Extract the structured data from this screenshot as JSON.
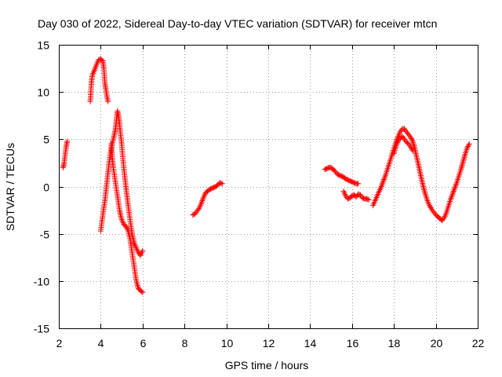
{
  "chart_data": {
    "type": "scatter",
    "title": "Day 030 of 2022, Sidereal Day-to-day VTEC variation (SDTVAR) for receiver mtcn",
    "xlabel": "GPS time / hours",
    "ylabel": "SDTVAR / TECUs",
    "xlim": [
      2,
      22
    ],
    "ylim": [
      -15,
      15
    ],
    "xticks": [
      2,
      4,
      6,
      8,
      10,
      12,
      14,
      16,
      18,
      20,
      22
    ],
    "yticks": [
      -15,
      -10,
      -5,
      0,
      5,
      10,
      15
    ],
    "grid": true,
    "marker": "+",
    "series": [
      {
        "name": "SDTVAR",
        "color": "#ff0000",
        "segments": [
          [
            [
              2.2,
              2.0
            ],
            [
              2.25,
              2.4
            ],
            [
              2.3,
              3.3
            ],
            [
              2.35,
              4.2
            ],
            [
              2.4,
              4.8
            ]
          ],
          [
            [
              3.5,
              9.0
            ],
            [
              3.55,
              10.8
            ],
            [
              3.6,
              11.8
            ],
            [
              3.7,
              12.3
            ],
            [
              3.8,
              12.9
            ],
            [
              3.9,
              13.4
            ],
            [
              4.0,
              13.5
            ],
            [
              4.1,
              13.3
            ],
            [
              4.15,
              12.5
            ],
            [
              4.2,
              11.0
            ],
            [
              4.25,
              10.2
            ],
            [
              4.3,
              9.5
            ],
            [
              4.35,
              9.0
            ]
          ],
          [
            [
              4.0,
              -4.7
            ],
            [
              4.1,
              -3.0
            ],
            [
              4.2,
              -1.5
            ],
            [
              4.3,
              0.5
            ],
            [
              4.4,
              2.5
            ],
            [
              4.5,
              4.0
            ],
            [
              4.6,
              5.0
            ],
            [
              4.7,
              6.0
            ],
            [
              4.75,
              7.0
            ],
            [
              4.8,
              8.0
            ],
            [
              4.85,
              7.5
            ],
            [
              4.9,
              6.5
            ],
            [
              5.0,
              4.5
            ],
            [
              5.1,
              2.0
            ],
            [
              5.2,
              0.0
            ],
            [
              5.3,
              -1.8
            ],
            [
              5.4,
              -3.5
            ],
            [
              5.5,
              -5.0
            ],
            [
              5.6,
              -6.0
            ],
            [
              5.7,
              -6.5
            ],
            [
              5.8,
              -7.0
            ],
            [
              5.9,
              -7.3
            ],
            [
              6.0,
              -6.8
            ]
          ],
          [
            [
              4.5,
              4.5
            ],
            [
              4.55,
              3.0
            ],
            [
              4.6,
              2.0
            ],
            [
              4.7,
              0.5
            ],
            [
              4.8,
              -1.0
            ],
            [
              4.9,
              -2.5
            ],
            [
              5.0,
              -3.5
            ],
            [
              5.1,
              -4.0
            ],
            [
              5.2,
              -4.2
            ],
            [
              5.3,
              -4.6
            ],
            [
              5.4,
              -5.5
            ],
            [
              5.5,
              -7.0
            ],
            [
              5.6,
              -8.5
            ],
            [
              5.7,
              -10.0
            ],
            [
              5.8,
              -10.8
            ],
            [
              5.9,
              -11.0
            ],
            [
              6.0,
              -11.2
            ]
          ],
          [
            [
              8.4,
              -3.0
            ],
            [
              8.5,
              -2.9
            ],
            [
              8.6,
              -2.6
            ],
            [
              8.7,
              -2.3
            ],
            [
              8.8,
              -1.8
            ],
            [
              8.9,
              -1.2
            ],
            [
              9.0,
              -0.7
            ],
            [
              9.1,
              -0.5
            ],
            [
              9.2,
              -0.3
            ],
            [
              9.3,
              -0.2
            ],
            [
              9.4,
              -0.1
            ],
            [
              9.5,
              0.0
            ],
            [
              9.6,
              0.2
            ],
            [
              9.7,
              0.4
            ],
            [
              9.8,
              0.3
            ]
          ],
          [
            [
              14.7,
              1.8
            ],
            [
              14.8,
              1.9
            ],
            [
              14.9,
              2.0
            ],
            [
              15.0,
              2.0
            ],
            [
              15.1,
              1.8
            ],
            [
              15.2,
              1.6
            ],
            [
              15.3,
              1.3
            ],
            [
              15.4,
              1.2
            ],
            [
              15.5,
              1.1
            ],
            [
              15.6,
              1.0
            ],
            [
              15.7,
              0.8
            ],
            [
              15.8,
              0.7
            ],
            [
              15.9,
              0.6
            ],
            [
              16.0,
              0.5
            ],
            [
              16.1,
              0.4
            ],
            [
              16.2,
              0.3
            ],
            [
              16.3,
              0.3
            ]
          ],
          [
            [
              15.6,
              -0.5
            ],
            [
              15.7,
              -1.0
            ],
            [
              15.8,
              -1.3
            ],
            [
              15.9,
              -1.2
            ],
            [
              16.0,
              -1.0
            ],
            [
              16.1,
              -0.9
            ],
            [
              16.2,
              -1.1
            ],
            [
              16.3,
              -0.8
            ],
            [
              16.4,
              -0.9
            ],
            [
              16.5,
              -1.2
            ],
            [
              16.6,
              -1.3
            ],
            [
              16.7,
              -1.3
            ],
            [
              16.8,
              -1.4
            ]
          ],
          [
            [
              17.0,
              -2.0
            ],
            [
              17.1,
              -1.5
            ],
            [
              17.2,
              -1.0
            ],
            [
              17.3,
              -0.5
            ],
            [
              17.4,
              0.0
            ],
            [
              17.5,
              0.6
            ],
            [
              17.6,
              1.2
            ],
            [
              17.7,
              1.9
            ],
            [
              17.8,
              2.6
            ],
            [
              17.9,
              3.3
            ],
            [
              18.0,
              4.0
            ],
            [
              18.1,
              4.7
            ],
            [
              18.2,
              5.3
            ],
            [
              18.3,
              5.8
            ],
            [
              18.4,
              6.1
            ],
            [
              18.5,
              6.1
            ],
            [
              18.6,
              5.8
            ],
            [
              18.7,
              5.5
            ],
            [
              18.8,
              5.2
            ],
            [
              18.9,
              4.8
            ],
            [
              19.0,
              4.0
            ],
            [
              19.1,
              3.0
            ],
            [
              19.2,
              2.0
            ],
            [
              19.3,
              1.0
            ],
            [
              19.4,
              0.0
            ],
            [
              19.5,
              -0.8
            ],
            [
              19.6,
              -1.5
            ],
            [
              19.7,
              -2.0
            ],
            [
              19.8,
              -2.4
            ],
            [
              19.9,
              -2.7
            ],
            [
              20.0,
              -3.0
            ],
            [
              20.1,
              -3.2
            ],
            [
              20.2,
              -3.4
            ],
            [
              20.3,
              -3.6
            ],
            [
              20.4,
              -3.3
            ],
            [
              20.5,
              -2.8
            ],
            [
              20.6,
              -2.1
            ],
            [
              20.7,
              -1.4
            ],
            [
              20.8,
              -0.8
            ],
            [
              20.9,
              -0.2
            ],
            [
              21.0,
              0.4
            ],
            [
              21.1,
              1.1
            ],
            [
              21.2,
              1.8
            ],
            [
              21.3,
              2.6
            ],
            [
              21.4,
              3.4
            ],
            [
              21.5,
              4.1
            ],
            [
              21.6,
              4.5
            ]
          ],
          [
            [
              18.0,
              3.5
            ],
            [
              18.1,
              4.3
            ],
            [
              18.2,
              4.8
            ],
            [
              18.3,
              5.1
            ],
            [
              18.4,
              5.3
            ],
            [
              18.5,
              5.0
            ],
            [
              18.6,
              4.7
            ],
            [
              18.7,
              4.5
            ],
            [
              18.8,
              4.2
            ],
            [
              18.9,
              3.8
            ]
          ]
        ]
      }
    ]
  }
}
